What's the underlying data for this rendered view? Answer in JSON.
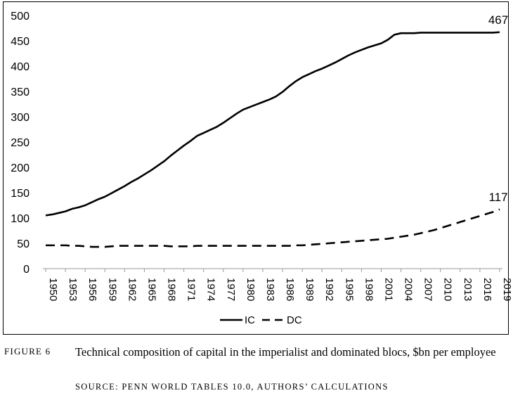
{
  "chart_data": {
    "type": "line",
    "title": "",
    "xlabel": "",
    "ylabel": "",
    "ylim": [
      0,
      500
    ],
    "yticks": [
      0,
      50,
      100,
      150,
      200,
      250,
      300,
      350,
      400,
      450,
      500
    ],
    "xticks": [
      "1950",
      "1953",
      "1956",
      "1959",
      "1962",
      "1965",
      "1968",
      "1971",
      "1974",
      "1977",
      "1980",
      "1983",
      "1986",
      "1989",
      "1992",
      "1995",
      "1998",
      "2001",
      "2004",
      "2007",
      "2010",
      "2013",
      "2016",
      "2019"
    ],
    "grid": false,
    "legend_position": "bottom",
    "x": [
      1950,
      1951,
      1952,
      1953,
      1954,
      1955,
      1956,
      1957,
      1958,
      1959,
      1960,
      1961,
      1962,
      1963,
      1964,
      1965,
      1966,
      1967,
      1968,
      1969,
      1970,
      1971,
      1972,
      1973,
      1974,
      1975,
      1976,
      1977,
      1978,
      1979,
      1980,
      1981,
      1982,
      1983,
      1984,
      1985,
      1986,
      1987,
      1988,
      1989,
      1990,
      1991,
      1992,
      1993,
      1994,
      1995,
      1996,
      1997,
      1998,
      1999,
      2000,
      2001,
      2002,
      2003,
      2004,
      2005,
      2006,
      2007,
      2008,
      2009,
      2010,
      2011,
      2012,
      2013,
      2014,
      2015,
      2016,
      2017,
      2018,
      2019
    ],
    "series": [
      {
        "name": "IC",
        "style": "solid",
        "color": "#000000",
        "values": [
          105,
          107,
          110,
          113,
          118,
          121,
          125,
          131,
          137,
          142,
          149,
          156,
          163,
          171,
          178,
          186,
          194,
          203,
          212,
          223,
          233,
          243,
          252,
          262,
          268,
          274,
          280,
          288,
          297,
          306,
          314,
          319,
          324,
          329,
          334,
          340,
          349,
          360,
          370,
          378,
          384,
          390,
          395,
          401,
          407,
          414,
          421,
          427,
          432,
          437,
          441,
          445,
          452,
          462,
          465,
          465,
          465,
          466,
          466,
          466,
          466,
          466,
          466,
          466,
          466,
          466,
          466,
          466,
          466,
          467
        ],
        "end_label": "467"
      },
      {
        "name": "DC",
        "style": "dashed",
        "color": "#000000",
        "values": [
          46,
          46,
          46,
          46,
          45,
          45,
          44,
          43,
          43,
          43,
          44,
          45,
          45,
          45,
          45,
          45,
          45,
          45,
          45,
          44,
          44,
          44,
          44,
          45,
          45,
          45,
          45,
          45,
          45,
          45,
          45,
          45,
          45,
          45,
          45,
          45,
          45,
          45,
          46,
          46,
          47,
          48,
          49,
          50,
          51,
          52,
          53,
          54,
          55,
          56,
          57,
          58,
          59,
          61,
          63,
          65,
          67,
          70,
          73,
          76,
          80,
          84,
          88,
          92,
          96,
          100,
          104,
          108,
          112,
          117
        ],
        "end_label": "117"
      }
    ]
  },
  "caption": {
    "label": "Figure 6",
    "title": "Technical composition of capital in the imperialist and dominated blocs, $bn per employee",
    "source": "Source: Penn World Tables 10.0, authors’ calculations"
  }
}
